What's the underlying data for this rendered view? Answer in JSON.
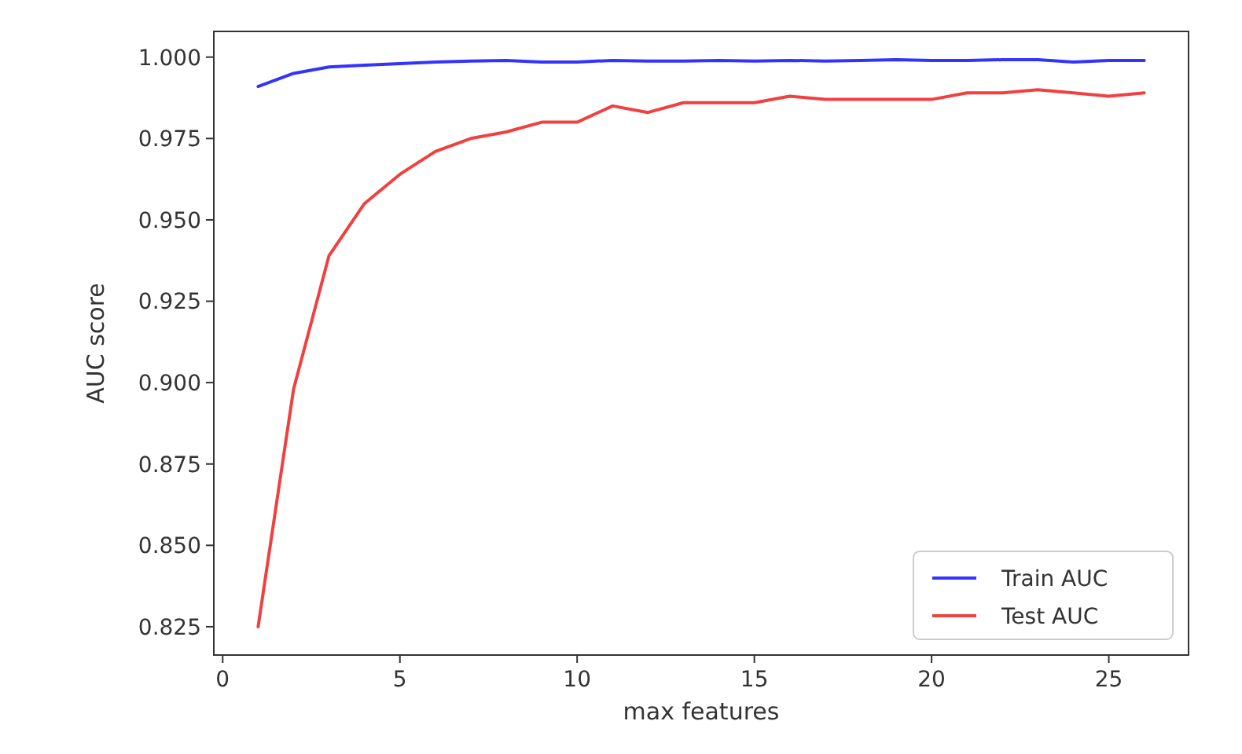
{
  "chart_data": {
    "type": "line",
    "xlabel": "max features",
    "ylabel": "AUC score",
    "x": [
      1,
      2,
      3,
      4,
      5,
      6,
      7,
      8,
      9,
      10,
      11,
      12,
      13,
      14,
      15,
      16,
      17,
      18,
      19,
      20,
      21,
      22,
      23,
      24,
      25,
      26
    ],
    "series": [
      {
        "name": "Train AUC",
        "color": "#3333ff",
        "values": [
          0.991,
          0.995,
          0.997,
          0.9975,
          0.998,
          0.9985,
          0.9988,
          0.999,
          0.9985,
          0.9985,
          0.999,
          0.9988,
          0.9988,
          0.999,
          0.9988,
          0.999,
          0.9988,
          0.999,
          0.9992,
          0.999,
          0.999,
          0.9992,
          0.9992,
          0.9985,
          0.999,
          0.999
        ]
      },
      {
        "name": "Test AUC",
        "color": "#f04040",
        "values": [
          0.825,
          0.898,
          0.939,
          0.955,
          0.964,
          0.971,
          0.975,
          0.977,
          0.98,
          0.98,
          0.985,
          0.983,
          0.986,
          0.986,
          0.986,
          0.988,
          0.987,
          0.987,
          0.987,
          0.987,
          0.989,
          0.989,
          0.99,
          0.989,
          0.988,
          0.989
        ]
      }
    ],
    "xlim": [
      -0.25,
      27.25
    ],
    "xticks": [
      0,
      5,
      10,
      15,
      20,
      25
    ],
    "ylim": [
      0.8163,
      1.0079
    ],
    "yticks": [
      {
        "value": 0.825,
        "label": "0.825"
      },
      {
        "value": 0.85,
        "label": "0.850"
      },
      {
        "value": 0.875,
        "label": "0.875"
      },
      {
        "value": 0.9,
        "label": "0.900"
      },
      {
        "value": 0.925,
        "label": "0.925"
      },
      {
        "value": 0.95,
        "label": "0.950"
      },
      {
        "value": 0.975,
        "label": "0.975"
      },
      {
        "value": 1,
        "label": "1.000"
      }
    ],
    "legend": "bottom right",
    "grid": false
  }
}
